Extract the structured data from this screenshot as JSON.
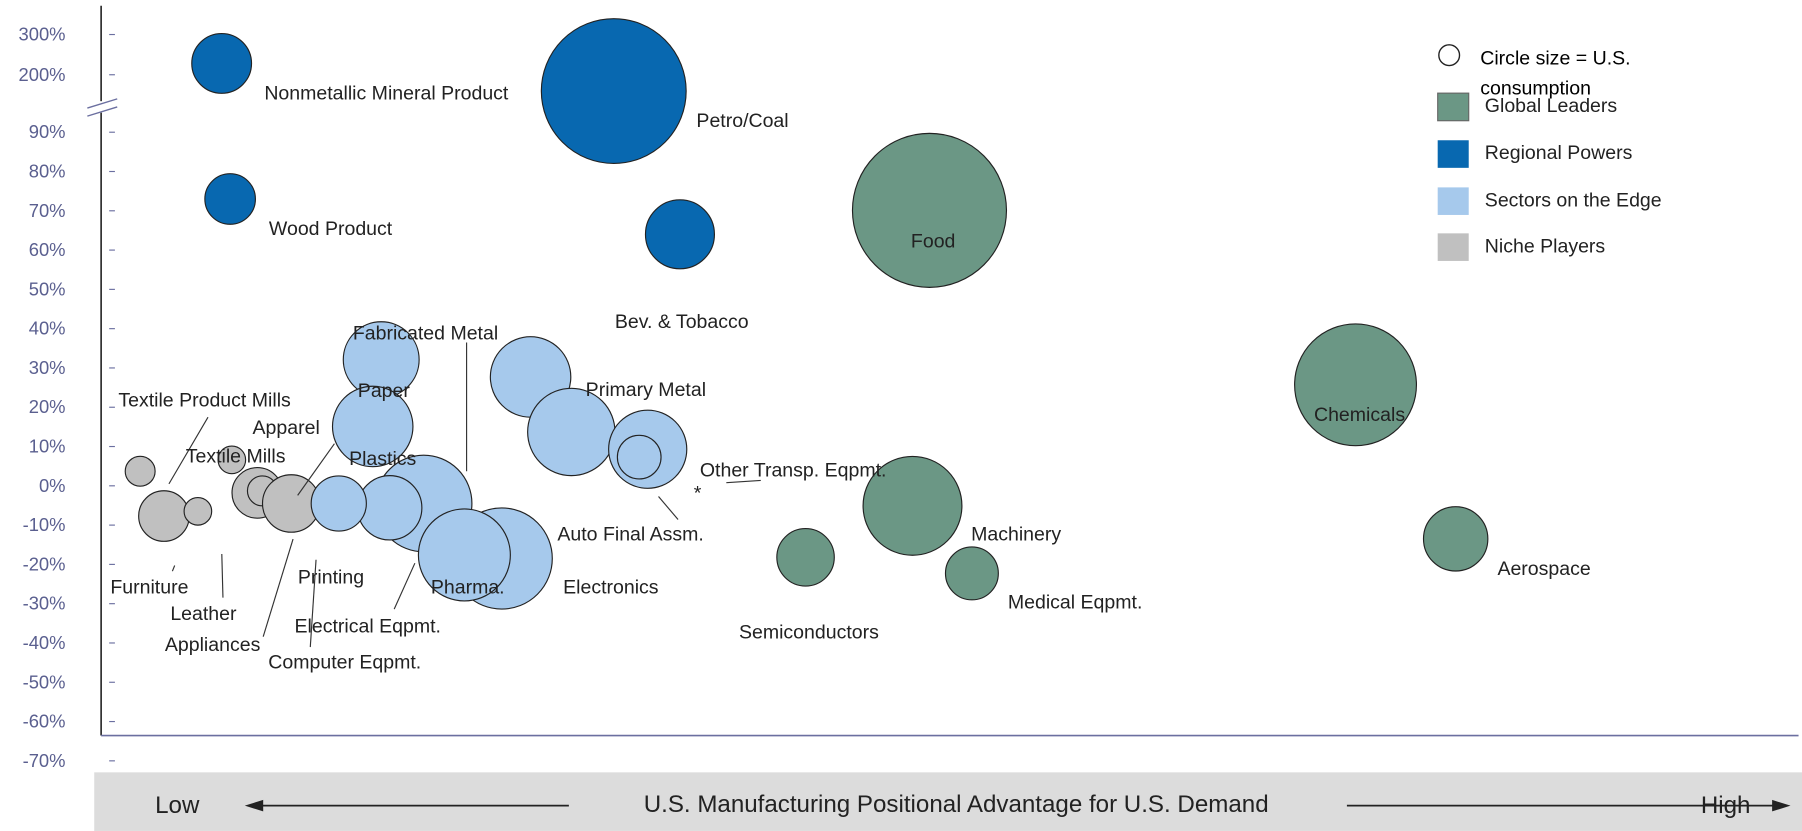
{
  "chart_data": {
    "type": "bubble",
    "xlabel": "U.S. Manufacturing Positional Advantage for U.S. Demand",
    "x_low_label": "Low",
    "x_high_label": "High",
    "size_note": "Circle size = U.S. consumption",
    "legend": "top-right",
    "xlim": [
      0,
      100
    ],
    "ylim": [
      -70,
      300
    ],
    "ybreak": [
      90,
      200
    ],
    "yticks": [
      {
        "value": 300,
        "label": "300%"
      },
      {
        "value": 200,
        "label": "200%"
      },
      {
        "value": 90,
        "label": "90%"
      },
      {
        "value": 80,
        "label": "80%"
      },
      {
        "value": 70,
        "label": "70%"
      },
      {
        "value": 60,
        "label": "60%"
      },
      {
        "value": 50,
        "label": "50%"
      },
      {
        "value": 40,
        "label": "40%"
      },
      {
        "value": 30,
        "label": "30%"
      },
      {
        "value": 20,
        "label": "20%"
      },
      {
        "value": 10,
        "label": "10%"
      },
      {
        "value": 0,
        "label": "0%"
      },
      {
        "value": -10,
        "label": "-10%"
      },
      {
        "value": -20,
        "label": "-20%"
      },
      {
        "value": -30,
        "label": "-30%"
      },
      {
        "value": -40,
        "label": "-40%"
      },
      {
        "value": -50,
        "label": "-50%"
      },
      {
        "value": -60,
        "label": "-60%"
      },
      {
        "value": -70,
        "label": "-70%"
      }
    ],
    "series": [
      {
        "name": "Global Leaders",
        "color": "#6b9785",
        "labels": [
          "Food",
          "Chemicals",
          "Aerospace",
          "Machinery",
          "Medical Eqpmt.",
          "Semiconductors"
        ],
        "x": [
          48.8,
          73.9,
          79.8,
          47.8,
          51.3,
          41.5
        ],
        "values": [
          70.4,
          26,
          -13.2,
          -4.8,
          -22,
          -17.9
        ],
        "sizes": [
          67,
          53,
          28,
          43,
          23,
          25
        ]
      },
      {
        "name": "Regional Powers",
        "color": "#0868b0",
        "labels": [
          "Nonmetallic Mineral Product",
          "Petro/Coal",
          "Wood Product",
          "Bev. & Tobacco"
        ],
        "x": [
          7.1,
          30.2,
          7.6,
          34.1
        ],
        "values": [
          231,
          171,
          73.3,
          64.3
        ],
        "sizes": [
          26,
          63,
          22,
          30
        ]
      },
      {
        "name": "Sectors on the Edge",
        "color": "#a6c9ec",
        "labels": [
          "Fabricated Metal",
          "Paper",
          "Plastics",
          "Primary Metal",
          "Auto Final Assm.",
          "Other Transp. Eqpmt.",
          "*",
          "Electronics",
          "Pharma.",
          "Electrical Eqpmt.",
          "Computer Eqpmt."
        ],
        "x": [
          19,
          16.5,
          16,
          25.3,
          27.7,
          32.2,
          31.7,
          23.6,
          21.4,
          17,
          14
        ],
        "values": [
          -4.2,
          32.4,
          15.4,
          28,
          14,
          9.6,
          7.6,
          -18.2,
          -17.3,
          -5.3,
          -4.2
        ],
        "sizes": [
          42,
          33,
          35,
          35,
          38,
          34,
          19,
          44,
          40,
          28,
          24
        ]
      },
      {
        "name": "Niche Players",
        "color": "#c0c0c0",
        "labels": [
          "Textile Product Mills",
          "Furniture",
          "Leather",
          "Textile Mills",
          "Apparel",
          "Appliances",
          "Printing"
        ],
        "x": [
          2.3,
          3.7,
          5.7,
          7.7,
          9.2,
          9.5,
          11.2
        ],
        "values": [
          4,
          -7.4,
          -6.2,
          6.9,
          -1.5,
          -1,
          -4.2
        ],
        "sizes": [
          13,
          22,
          12,
          12,
          22,
          13,
          25
        ]
      }
    ]
  }
}
